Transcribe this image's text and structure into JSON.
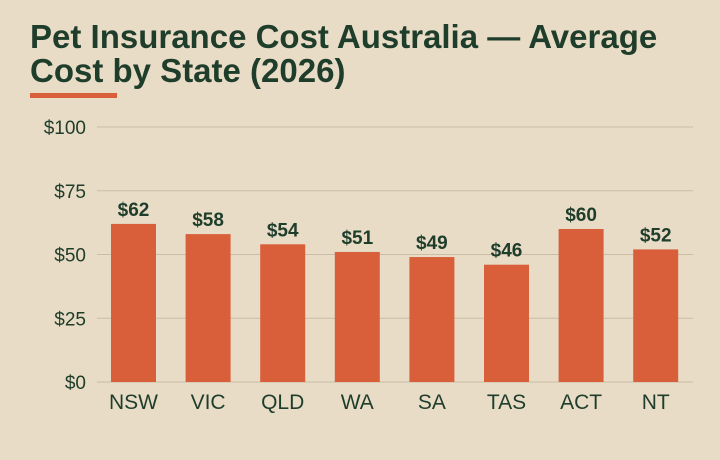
{
  "title": "Pet Insurance Cost Australia — Average Cost by State (2026)",
  "colors": {
    "background": "#e8dcc6",
    "bar": "#d95f3b",
    "accent": "#d95f3b",
    "text": "#1f3d2b",
    "grid": "#c9bda6"
  },
  "chart_data": {
    "type": "bar",
    "title": "Pet Insurance Cost Australia — Average Cost by State (2026)",
    "xlabel": "",
    "ylabel": "",
    "ylim": [
      0,
      100
    ],
    "y_ticks": [
      0,
      25,
      50,
      75,
      100
    ],
    "y_tick_labels": [
      "$0",
      "$25",
      "$50",
      "$75",
      "$100"
    ],
    "grid": true,
    "legend": "none",
    "categories": [
      "NSW",
      "VIC",
      "QLD",
      "WA",
      "SA",
      "TAS",
      "ACT",
      "NT"
    ],
    "values": [
      62,
      58,
      54,
      51,
      49,
      46,
      60,
      52
    ],
    "value_labels": [
      "$62",
      "$58",
      "$54",
      "$51",
      "$49",
      "$46",
      "$60",
      "$52"
    ]
  }
}
